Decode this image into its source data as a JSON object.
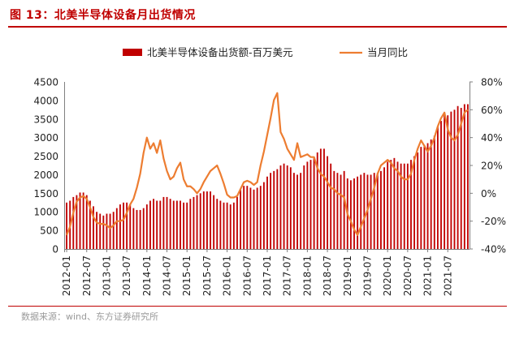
{
  "figure": {
    "title": "图 13：北美半导体设备月出货情况",
    "source": "数据来源：wind、东方证券研究所"
  },
  "colors": {
    "bar": "#c00000",
    "line": "#ed7d31",
    "title": "#c00000"
  },
  "chart_data": {
    "type": "bar+line",
    "title": "图 13：北美半导体设备月出货情况",
    "start_month": "2012-01",
    "x_tick_labels": [
      "2012-01",
      "2012-07",
      "2013-01",
      "2013-07",
      "2014-01",
      "2014-07",
      "2015-01",
      "2015-07",
      "2016-01",
      "2016-07",
      "2017-01",
      "2017-07",
      "2018-01",
      "2018-07",
      "2019-01",
      "2019-07",
      "2020-01",
      "2020-07",
      "2021-01",
      "2021-07"
    ],
    "left_axis": {
      "range": [
        0,
        4500
      ],
      "ticks": [
        "0",
        "500",
        "1000",
        "1500",
        "2000",
        "2500",
        "3000",
        "3500",
        "4000",
        "4500"
      ]
    },
    "right_axis": {
      "range": [
        -40,
        80
      ],
      "ticks": [
        "-40%",
        "-20%",
        "0%",
        "20%",
        "40%",
        "60%",
        "80%"
      ]
    },
    "legend": {
      "bar": "北美半导体设备出货额-百万美元",
      "line": "当月同比"
    },
    "series": [
      {
        "name": "北美半导体设备出货额-百万美元",
        "kind": "bar",
        "axis": "left",
        "values": [
          1250,
          1300,
          1400,
          1450,
          1520,
          1520,
          1450,
          1300,
          1150,
          1000,
          950,
          900,
          950,
          950,
          1000,
          1100,
          1200,
          1250,
          1250,
          1200,
          1100,
          1050,
          1050,
          1100,
          1200,
          1300,
          1350,
          1300,
          1300,
          1400,
          1400,
          1350,
          1300,
          1300,
          1300,
          1250,
          1250,
          1350,
          1400,
          1450,
          1500,
          1550,
          1550,
          1550,
          1450,
          1350,
          1300,
          1250,
          1250,
          1200,
          1250,
          1400,
          1600,
          1700,
          1700,
          1650,
          1600,
          1650,
          1700,
          1800,
          1950,
          2050,
          2100,
          2150,
          2250,
          2300,
          2250,
          2200,
          2050,
          2000,
          2050,
          2250,
          2350,
          2400,
          2450,
          2600,
          2700,
          2700,
          2500,
          2300,
          2100,
          2050,
          2000,
          2100,
          1900,
          1850,
          1900,
          1950,
          2000,
          2050,
          2000,
          2000,
          2050,
          2050,
          2100,
          2200,
          2350,
          2400,
          2450,
          2350,
          2300,
          2300,
          2300,
          2400,
          2500,
          2600,
          2750,
          2800,
          2850,
          2950,
          3050,
          3300,
          3450,
          3600,
          3600,
          3700,
          3750,
          3850,
          3800,
          3900,
          3900
        ]
      },
      {
        "name": "当月同比",
        "kind": "line",
        "axis": "right",
        "values": [
          -30,
          -24,
          -14,
          -6,
          -3,
          -2,
          -4,
          -10,
          -17,
          -21,
          -22,
          -22,
          -23,
          -25,
          -23,
          -20,
          -20,
          -19,
          -14,
          -8,
          -4,
          4,
          14,
          29,
          40,
          32,
          36,
          29,
          38,
          25,
          16,
          10,
          12,
          18,
          22,
          10,
          5,
          5,
          3,
          0,
          3,
          8,
          12,
          16,
          18,
          20,
          14,
          7,
          -1,
          -3,
          -3,
          -2,
          3,
          8,
          9,
          8,
          6,
          8,
          20,
          30,
          42,
          54,
          67,
          72,
          44,
          39,
          32,
          28,
          24,
          36,
          26,
          27,
          28,
          26,
          26,
          18,
          14,
          12,
          8,
          4,
          3,
          0,
          -1,
          -3,
          -15,
          -20,
          -26,
          -30,
          -24,
          -18,
          -12,
          -4,
          4,
          14,
          20,
          22,
          24,
          22,
          18,
          16,
          12,
          10,
          10,
          14,
          24,
          32,
          38,
          34,
          30,
          34,
          40,
          48,
          54,
          58,
          46,
          40,
          38,
          42,
          50,
          58,
          60
        ]
      }
    ]
  }
}
